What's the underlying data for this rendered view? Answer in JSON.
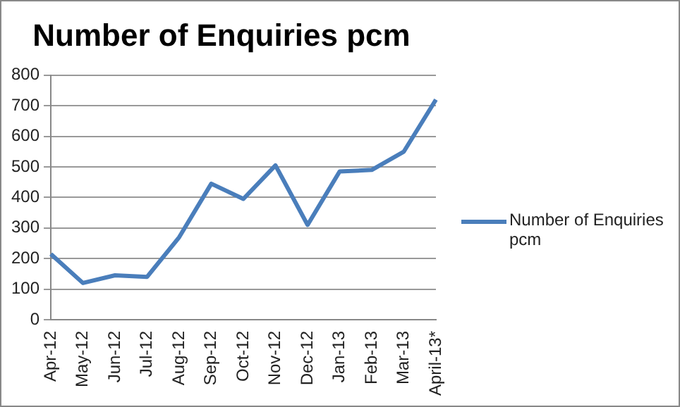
{
  "chart_data": {
    "type": "line",
    "title": "Number of Enquiries pcm",
    "categories": [
      "Apr-12",
      "May-12",
      "Jun-12",
      "Jul-12",
      "Aug-12",
      "Sep-12",
      "Oct-12",
      "Nov-12",
      "Dec-12",
      "Jan-13",
      "Feb-13",
      "Mar-13",
      "April-13*"
    ],
    "series": [
      {
        "name": "Number of Enquiries pcm",
        "color": "#4a7ebb",
        "values": [
          215,
          120,
          145,
          140,
          270,
          445,
          395,
          505,
          310,
          485,
          490,
          550,
          720
        ]
      }
    ],
    "ylim": [
      0,
      800
    ],
    "yticks": [
      0,
      100,
      200,
      300,
      400,
      500,
      600,
      700,
      800
    ],
    "grid": "y",
    "legend": "right",
    "marker": "none",
    "line_style": "solid"
  }
}
